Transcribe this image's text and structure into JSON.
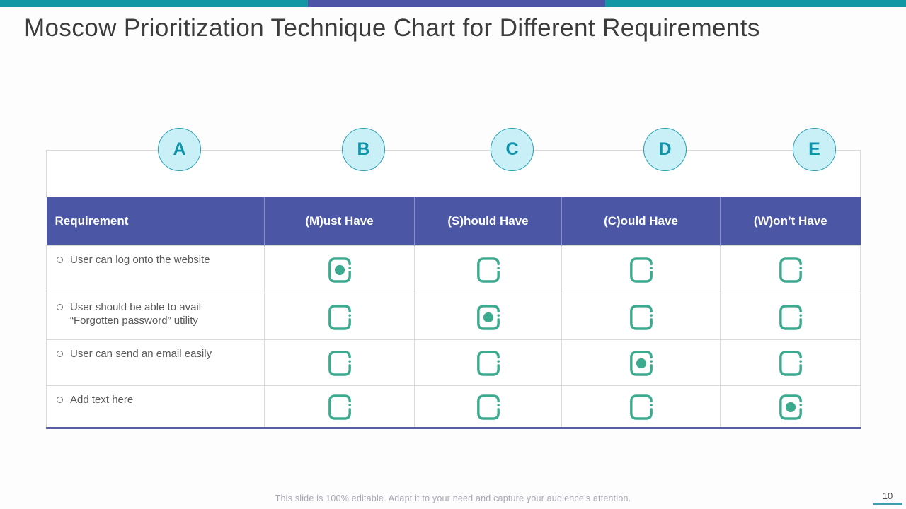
{
  "title": "Moscow Prioritization Technique Chart for Different Requirements",
  "badges": [
    "A",
    "B",
    "C",
    "D",
    "E"
  ],
  "table": {
    "columns": [
      "Requirement",
      "(M)ust Have",
      "(S)hould Have",
      "(C)ould Have",
      "(W)on’t Have"
    ],
    "rows": [
      {
        "label": "User can log onto the website",
        "checks": [
          true,
          false,
          false,
          false
        ]
      },
      {
        "label": "User should be able to avail “Forgotten password” utility",
        "checks": [
          false,
          true,
          false,
          false
        ]
      },
      {
        "label": "User can send an email easily",
        "checks": [
          false,
          false,
          true,
          false
        ]
      },
      {
        "label": "Add text here",
        "checks": [
          false,
          false,
          false,
          true
        ]
      }
    ]
  },
  "footer": {
    "note": "This slide is 100% editable. Adapt it to your need and capture your audience’s attention.",
    "page_number": "10"
  },
  "colors": {
    "accent_teal": "#1397A5",
    "accent_purple": "#4E55A6",
    "header_purple": "#4B56A4",
    "check_green": "#3BAA8E",
    "badge_fill": "#C9EFF7",
    "badge_text": "#0F93A8"
  },
  "icons": {
    "checked": "checked-checkbox-icon",
    "unchecked": "unchecked-checkbox-icon"
  }
}
